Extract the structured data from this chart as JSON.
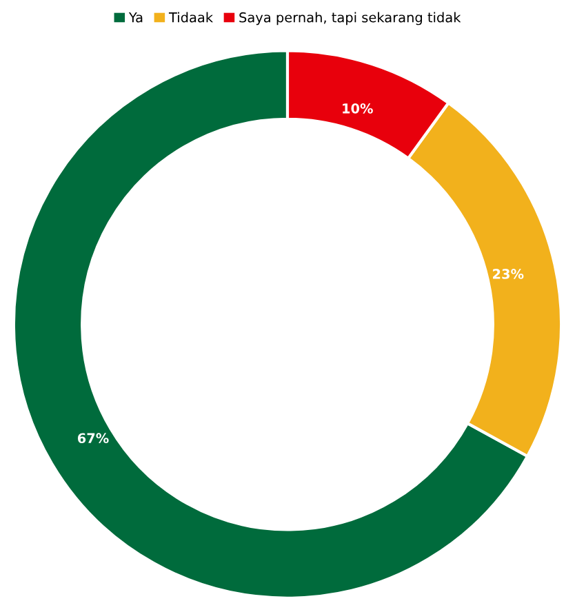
{
  "chart_data": {
    "type": "donut",
    "categories": [
      "Ya",
      "Tidaak",
      "Saya pernah, tapi sekarang tidak"
    ],
    "values": [
      67,
      23,
      10
    ],
    "colors": [
      "#006b3c",
      "#f2b11c",
      "#e8000c"
    ],
    "value_labels": [
      "67%",
      "23%",
      "10%"
    ],
    "legend": "top"
  }
}
